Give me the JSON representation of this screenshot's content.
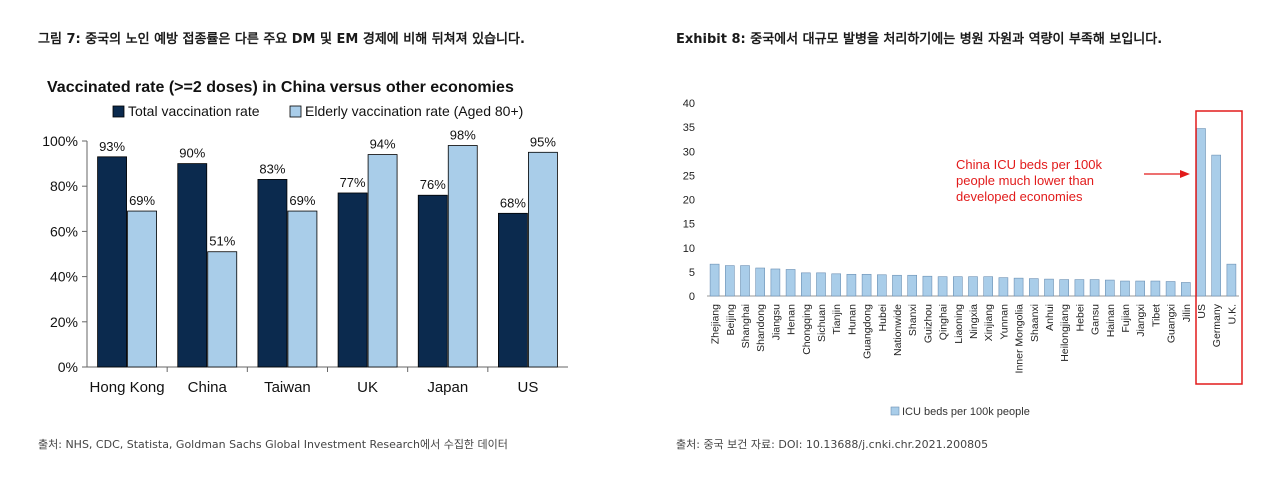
{
  "left": {
    "exhibit_title": "그림 7: 중국의 노인 예방 접종률은 다른 주요 DM 및 EM 경제에 비해 뒤쳐져 있습니다.",
    "source": "출처: NHS, CDC, Statista, Goldman Sachs Global Investment Research에서 수집한 데이터"
  },
  "right": {
    "exhibit_title": "Exhibit 8: 중국에서 대규모 발병을 처리하기에는 병원 자원과 역량이 부족해 보입니다.",
    "source": "출처: 중국 보건 자료: DOI: 10.13688/j.cnki.chr.2021.200805",
    "annotation": [
      "China ICU beds per 100k",
      "people much lower than",
      "developed economies"
    ]
  },
  "chart_data": [
    {
      "type": "bar",
      "title": "Vaccinated rate (>=2 doses) in China versus other economies",
      "categories": [
        "Hong Kong",
        "China",
        "Taiwan",
        "UK",
        "Japan",
        "US"
      ],
      "series": [
        {
          "name": "Total vaccination rate",
          "values": [
            93,
            90,
            83,
            77,
            76,
            68
          ],
          "labels": [
            "93%",
            "90%",
            "83%",
            "77%",
            "76%",
            "68%"
          ],
          "color": "#0b2a4e"
        },
        {
          "name": "Elderly vaccination rate (Aged 80+)",
          "values": [
            69,
            51,
            69,
            94,
            98,
            95
          ],
          "labels": [
            "69%",
            "51%",
            "69%",
            "94%",
            "98%",
            "95%"
          ],
          "color": "#a9cde9"
        }
      ],
      "ylim": [
        0,
        100
      ],
      "yticks": [
        "0%",
        "20%",
        "40%",
        "60%",
        "80%",
        "100%"
      ],
      "legend": "top",
      "grid": false
    },
    {
      "type": "bar",
      "categories": [
        "Zhejiang",
        "Beijing",
        "Shanghai",
        "Shandong",
        "Jiangsu",
        "Henan",
        "Chongqing",
        "Sichuan",
        "Tianjin",
        "Hunan",
        "Guangdong",
        "Hubei",
        "Nationwide",
        "Shanxi",
        "Guizhou",
        "Qinghai",
        "Liaoning",
        "Ningxia",
        "Xinjiang",
        "Yunnan",
        "Inner Mongolia",
        "Shaanxi",
        "Anhui",
        "Heilongjiang",
        "Hebei",
        "Gansu",
        "Hainan",
        "Fujian",
        "Jiangxi",
        "Tibet",
        "Guangxi",
        "Jilin",
        "US",
        "Germany",
        "U.K."
      ],
      "series": [
        {
          "name": "ICU beds per 100k people",
          "values": [
            6.6,
            6.3,
            6.3,
            5.8,
            5.6,
            5.5,
            4.8,
            4.8,
            4.6,
            4.5,
            4.5,
            4.4,
            4.3,
            4.3,
            4.1,
            4.0,
            4.0,
            4.0,
            4.0,
            3.8,
            3.7,
            3.6,
            3.5,
            3.4,
            3.4,
            3.4,
            3.3,
            3.1,
            3.1,
            3.1,
            3.0,
            2.8,
            34.7,
            29.2,
            6.6
          ],
          "color": "#a9cde9"
        }
      ],
      "ylim": [
        0,
        40
      ],
      "yticks": [
        "0",
        "5",
        "10",
        "15",
        "20",
        "25",
        "30",
        "35",
        "40"
      ],
      "highlight": [
        "US",
        "Germany",
        "U.K."
      ],
      "legend": "bottom",
      "grid": false
    }
  ]
}
